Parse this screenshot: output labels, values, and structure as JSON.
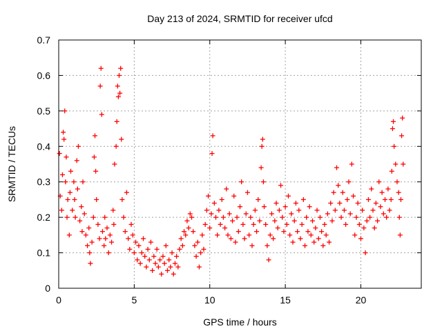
{
  "chart_data": {
    "type": "scatter",
    "title": "Day 213 of 2024, SRMTID for receiver ufcd",
    "xlabel": "GPS time / hours",
    "ylabel": "SRMTID / TECUs",
    "xlim": [
      0,
      24
    ],
    "ylim": [
      0,
      0.7
    ],
    "x_ticks": [
      0,
      5,
      10,
      15,
      20
    ],
    "x_tick_labels": [
      "0",
      "5",
      "10",
      "15",
      "20"
    ],
    "y_ticks": [
      0,
      0.1,
      0.2,
      0.3,
      0.4,
      0.5,
      0.6,
      0.7
    ],
    "y_tick_labels": [
      "0",
      "0.1",
      "0.2",
      "0.3",
      "0.4",
      "0.5",
      "0.6",
      "0.7"
    ],
    "grid": true,
    "marker": "+",
    "color": "#ff0000",
    "series": [
      {
        "name": "SRMTID",
        "points": [
          [
            0.05,
            0.38
          ],
          [
            0.1,
            0.26
          ],
          [
            0.2,
            0.22
          ],
          [
            0.25,
            0.32
          ],
          [
            0.3,
            0.44
          ],
          [
            0.35,
            0.42
          ],
          [
            0.4,
            0.5
          ],
          [
            0.45,
            0.3
          ],
          [
            0.5,
            0.37
          ],
          [
            0.55,
            0.2
          ],
          [
            0.6,
            0.25
          ],
          [
            0.7,
            0.15
          ],
          [
            0.75,
            0.27
          ],
          [
            0.8,
            0.33
          ],
          [
            0.9,
            0.22
          ],
          [
            1.0,
            0.3
          ],
          [
            1.05,
            0.25
          ],
          [
            1.1,
            0.2
          ],
          [
            1.2,
            0.36
          ],
          [
            1.25,
            0.28
          ],
          [
            1.3,
            0.4
          ],
          [
            1.4,
            0.19
          ],
          [
            1.5,
            0.23
          ],
          [
            1.55,
            0.16
          ],
          [
            1.6,
            0.3
          ],
          [
            1.7,
            0.21
          ],
          [
            1.8,
            0.15
          ],
          [
            1.9,
            0.12
          ],
          [
            2.0,
            0.17
          ],
          [
            2.05,
            0.1
          ],
          [
            2.1,
            0.07
          ],
          [
            2.2,
            0.13
          ],
          [
            2.3,
            0.2
          ],
          [
            2.35,
            0.37
          ],
          [
            2.4,
            0.43
          ],
          [
            2.45,
            0.33
          ],
          [
            2.5,
            0.25
          ],
          [
            2.6,
            0.18
          ],
          [
            2.7,
            0.14
          ],
          [
            2.75,
            0.57
          ],
          [
            2.8,
            0.62
          ],
          [
            2.85,
            0.49
          ],
          [
            2.9,
            0.16
          ],
          [
            3.0,
            0.12
          ],
          [
            3.05,
            0.2
          ],
          [
            3.1,
            0.14
          ],
          [
            3.2,
            0.17
          ],
          [
            3.3,
            0.1
          ],
          [
            3.4,
            0.15
          ],
          [
            3.5,
            0.13
          ],
          [
            3.6,
            0.22
          ],
          [
            3.65,
            0.18
          ],
          [
            3.7,
            0.35
          ],
          [
            3.8,
            0.4
          ],
          [
            3.85,
            0.47
          ],
          [
            3.9,
            0.57
          ],
          [
            3.95,
            0.54
          ],
          [
            4.0,
            0.6
          ],
          [
            4.05,
            0.55
          ],
          [
            4.1,
            0.62
          ],
          [
            4.15,
            0.42
          ],
          [
            4.2,
            0.25
          ],
          [
            4.3,
            0.2
          ],
          [
            4.4,
            0.16
          ],
          [
            4.5,
            0.27
          ],
          [
            4.6,
            0.14
          ],
          [
            4.7,
            0.11
          ],
          [
            4.8,
            0.18
          ],
          [
            4.9,
            0.15
          ],
          [
            5.0,
            0.1
          ],
          [
            5.1,
            0.13
          ],
          [
            5.2,
            0.08
          ],
          [
            5.3,
            0.12
          ],
          [
            5.4,
            0.07
          ],
          [
            5.5,
            0.1
          ],
          [
            5.6,
            0.14
          ],
          [
            5.7,
            0.09
          ],
          [
            5.8,
            0.06
          ],
          [
            5.9,
            0.11
          ],
          [
            6.0,
            0.08
          ],
          [
            6.1,
            0.13
          ],
          [
            6.2,
            0.05
          ],
          [
            6.3,
            0.09
          ],
          [
            6.4,
            0.07
          ],
          [
            6.5,
            0.11
          ],
          [
            6.6,
            0.06
          ],
          [
            6.7,
            0.08
          ],
          [
            6.8,
            0.04
          ],
          [
            6.9,
            0.09
          ],
          [
            7.0,
            0.07
          ],
          [
            7.1,
            0.12
          ],
          [
            7.2,
            0.05
          ],
          [
            7.3,
            0.08
          ],
          [
            7.4,
            0.06
          ],
          [
            7.5,
            0.1
          ],
          [
            7.6,
            0.04
          ],
          [
            7.7,
            0.07
          ],
          [
            7.8,
            0.09
          ],
          [
            7.9,
            0.06
          ],
          [
            8.0,
            0.11
          ],
          [
            8.1,
            0.14
          ],
          [
            8.2,
            0.12
          ],
          [
            8.3,
            0.16
          ],
          [
            8.4,
            0.15
          ],
          [
            8.5,
            0.19
          ],
          [
            8.6,
            0.17
          ],
          [
            8.7,
            0.21
          ],
          [
            8.8,
            0.2
          ],
          [
            8.9,
            0.16
          ],
          [
            9.0,
            0.12
          ],
          [
            9.1,
            0.09
          ],
          [
            9.2,
            0.13
          ],
          [
            9.3,
            0.06
          ],
          [
            9.4,
            0.1
          ],
          [
            9.5,
            0.15
          ],
          [
            9.6,
            0.11
          ],
          [
            9.7,
            0.18
          ],
          [
            9.8,
            0.22
          ],
          [
            9.9,
            0.26
          ],
          [
            10.0,
            0.17
          ],
          [
            10.1,
            0.21
          ],
          [
            10.15,
            0.38
          ],
          [
            10.2,
            0.43
          ],
          [
            10.3,
            0.24
          ],
          [
            10.4,
            0.2
          ],
          [
            10.5,
            0.15
          ],
          [
            10.6,
            0.22
          ],
          [
            10.7,
            0.18
          ],
          [
            10.8,
            0.25
          ],
          [
            10.9,
            0.2
          ],
          [
            11.0,
            0.17
          ],
          [
            11.1,
            0.28
          ],
          [
            11.2,
            0.15
          ],
          [
            11.3,
            0.21
          ],
          [
            11.4,
            0.14
          ],
          [
            11.5,
            0.19
          ],
          [
            11.6,
            0.26
          ],
          [
            11.7,
            0.13
          ],
          [
            11.8,
            0.2
          ],
          [
            11.9,
            0.16
          ],
          [
            12.0,
            0.23
          ],
          [
            12.1,
            0.3
          ],
          [
            12.2,
            0.18
          ],
          [
            12.3,
            0.14
          ],
          [
            12.4,
            0.21
          ],
          [
            12.5,
            0.27
          ],
          [
            12.6,
            0.15
          ],
          [
            12.7,
            0.2
          ],
          [
            12.8,
            0.12
          ],
          [
            12.9,
            0.18
          ],
          [
            13.0,
            0.22
          ],
          [
            13.1,
            0.16
          ],
          [
            13.2,
            0.25
          ],
          [
            13.3,
            0.19
          ],
          [
            13.4,
            0.34
          ],
          [
            13.45,
            0.4
          ],
          [
            13.5,
            0.42
          ],
          [
            13.55,
            0.3
          ],
          [
            13.6,
            0.23
          ],
          [
            13.7,
            0.18
          ],
          [
            13.8,
            0.12
          ],
          [
            13.9,
            0.08
          ],
          [
            14.0,
            0.15
          ],
          [
            14.1,
            0.21
          ],
          [
            14.2,
            0.14
          ],
          [
            14.3,
            0.19
          ],
          [
            14.4,
            0.24
          ],
          [
            14.5,
            0.17
          ],
          [
            14.6,
            0.22
          ],
          [
            14.7,
            0.29
          ],
          [
            14.8,
            0.2
          ],
          [
            14.9,
            0.16
          ],
          [
            15.0,
            0.23
          ],
          [
            15.1,
            0.18
          ],
          [
            15.2,
            0.26
          ],
          [
            15.3,
            0.15
          ],
          [
            15.4,
            0.21
          ],
          [
            15.5,
            0.13
          ],
          [
            15.6,
            0.19
          ],
          [
            15.7,
            0.24
          ],
          [
            15.8,
            0.16
          ],
          [
            15.9,
            0.22
          ],
          [
            16.0,
            0.14
          ],
          [
            16.1,
            0.18
          ],
          [
            16.2,
            0.25
          ],
          [
            16.3,
            0.12
          ],
          [
            16.4,
            0.2
          ],
          [
            16.5,
            0.16
          ],
          [
            16.6,
            0.23
          ],
          [
            16.7,
            0.15
          ],
          [
            16.8,
            0.19
          ],
          [
            16.9,
            0.13
          ],
          [
            17.0,
            0.17
          ],
          [
            17.1,
            0.22
          ],
          [
            17.2,
            0.14
          ],
          [
            17.3,
            0.2
          ],
          [
            17.4,
            0.16
          ],
          [
            17.5,
            0.12
          ],
          [
            17.6,
            0.18
          ],
          [
            17.7,
            0.15
          ],
          [
            17.8,
            0.21
          ],
          [
            17.9,
            0.13
          ],
          [
            18.0,
            0.24
          ],
          [
            18.1,
            0.19
          ],
          [
            18.2,
            0.27
          ],
          [
            18.3,
            0.22
          ],
          [
            18.4,
            0.34
          ],
          [
            18.5,
            0.29
          ],
          [
            18.6,
            0.24
          ],
          [
            18.7,
            0.2
          ],
          [
            18.8,
            0.27
          ],
          [
            18.9,
            0.22
          ],
          [
            19.0,
            0.18
          ],
          [
            19.1,
            0.25
          ],
          [
            19.2,
            0.3
          ],
          [
            19.3,
            0.21
          ],
          [
            19.4,
            0.35
          ],
          [
            19.5,
            0.26
          ],
          [
            19.6,
            0.15
          ],
          [
            19.7,
            0.2
          ],
          [
            19.8,
            0.24
          ],
          [
            19.9,
            0.18
          ],
          [
            20.0,
            0.14
          ],
          [
            20.1,
            0.22
          ],
          [
            20.2,
            0.17
          ],
          [
            20.3,
            0.1
          ],
          [
            20.4,
            0.19
          ],
          [
            20.5,
            0.25
          ],
          [
            20.6,
            0.2
          ],
          [
            20.7,
            0.28
          ],
          [
            20.8,
            0.22
          ],
          [
            20.9,
            0.17
          ],
          [
            21.0,
            0.24
          ],
          [
            21.1,
            0.19
          ],
          [
            21.2,
            0.3
          ],
          [
            21.3,
            0.23
          ],
          [
            21.4,
            0.27
          ],
          [
            21.5,
            0.21
          ],
          [
            21.6,
            0.25
          ],
          [
            21.7,
            0.2
          ],
          [
            21.8,
            0.28
          ],
          [
            21.9,
            0.22
          ],
          [
            22.0,
            0.25
          ],
          [
            22.05,
            0.33
          ],
          [
            22.1,
            0.45
          ],
          [
            22.15,
            0.47
          ],
          [
            22.2,
            0.4
          ],
          [
            22.3,
            0.35
          ],
          [
            22.4,
            0.3
          ],
          [
            22.5,
            0.27
          ],
          [
            22.55,
            0.2
          ],
          [
            22.6,
            0.15
          ],
          [
            22.65,
            0.25
          ],
          [
            22.7,
            0.43
          ],
          [
            22.75,
            0.48
          ],
          [
            22.8,
            0.35
          ]
        ]
      }
    ]
  }
}
